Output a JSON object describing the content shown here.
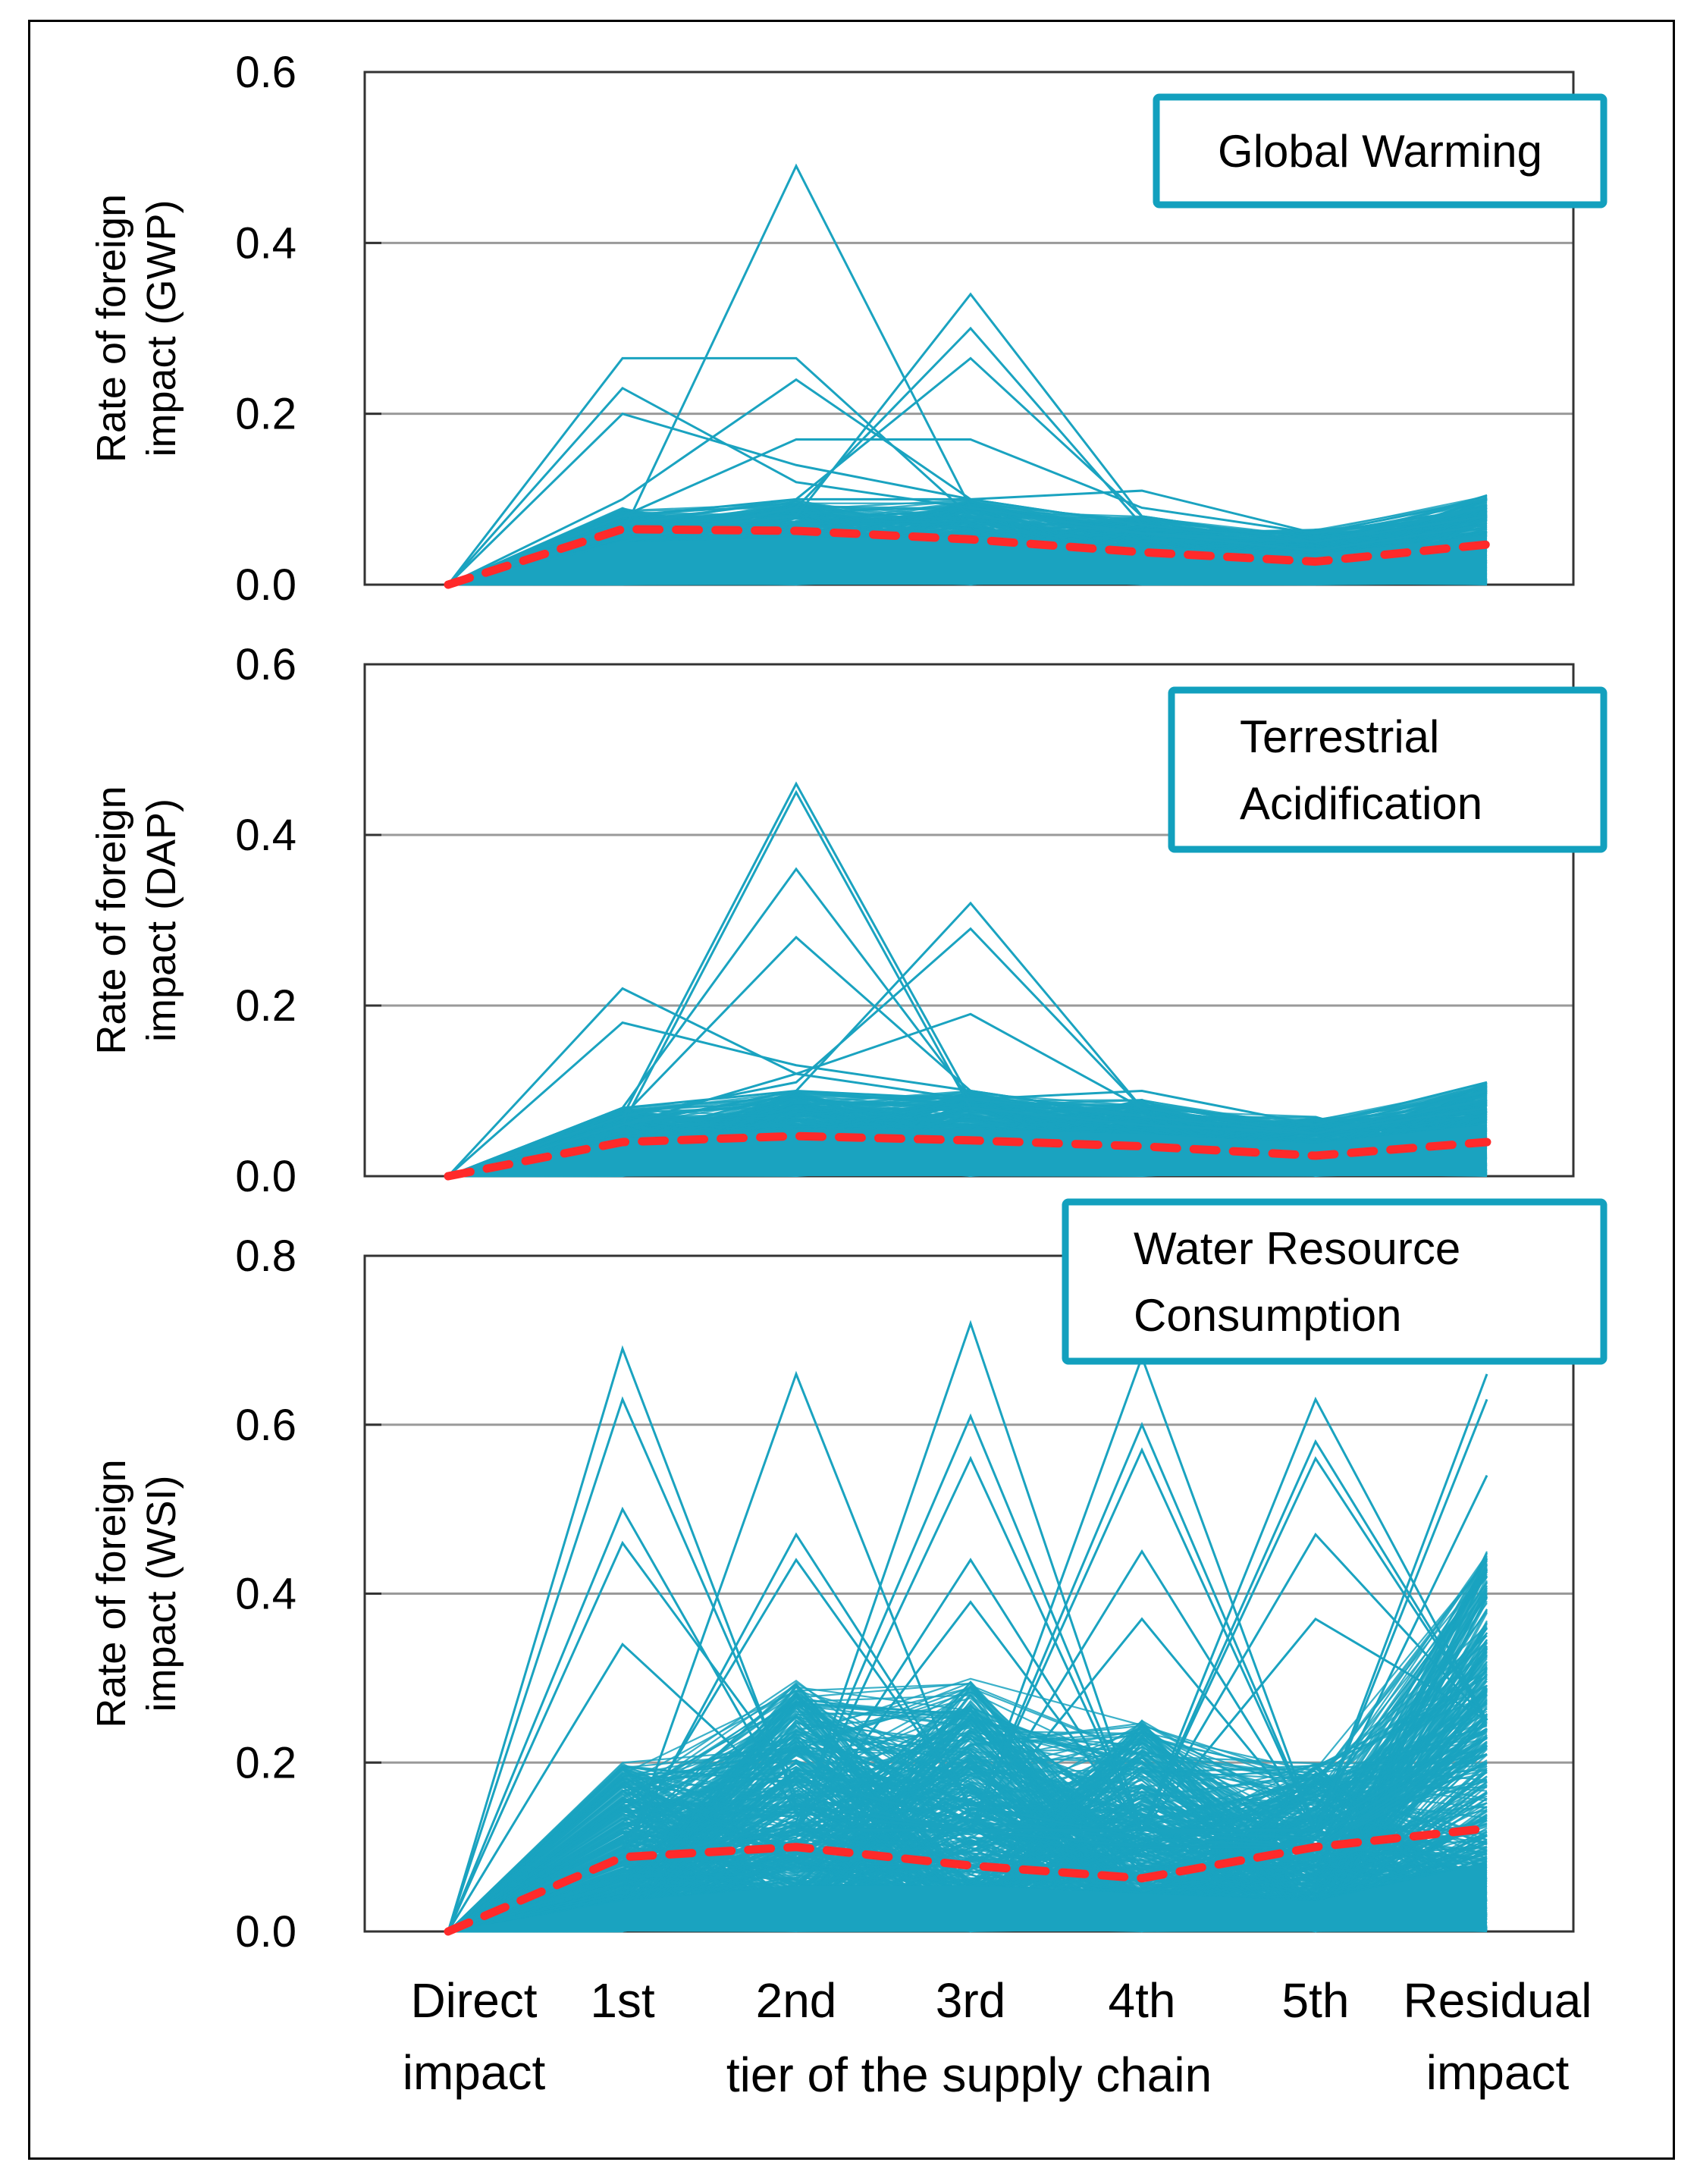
{
  "chart_data": [
    {
      "type": "line",
      "title": "Global Warming",
      "xlabel": "tier of the supply chain",
      "ylabel": "Rate of foreign impact (GWP)",
      "ylabel_lines": [
        "Rate of foreign",
        "impact (GWP)"
      ],
      "categories": [
        "Direct impact",
        "1st",
        "2nd",
        "3rd",
        "4th",
        "5th",
        "Residual impact"
      ],
      "ylim": [
        0,
        0.6
      ],
      "yticks": [
        0.0,
        0.2,
        0.4,
        0.6
      ],
      "ytick_labels": [
        "0.0",
        "0.2",
        "0.4",
        "0.6"
      ],
      "grid": true,
      "legend_box": [
        "Global Warming"
      ],
      "legend_position": "top-right",
      "series": [
        {
          "name": "mean",
          "style": "dashed",
          "color": "#ff2a2a",
          "values": [
            0,
            0.065,
            0.063,
            0.053,
            0.038,
            0.027,
            0.047
          ]
        },
        {
          "name": "sector-peak-2nd",
          "color": "#1aa3c0",
          "values": [
            0,
            0.06,
            0.49,
            0.09,
            0.06,
            0.04,
            0.07
          ]
        },
        {
          "name": "sector-peak-3rd-a",
          "color": "#1aa3c0",
          "values": [
            0,
            0.06,
            0.08,
            0.34,
            0.08,
            0.05,
            0.08
          ]
        },
        {
          "name": "sector-peak-3rd-b",
          "color": "#1aa3c0",
          "values": [
            0,
            0.05,
            0.09,
            0.3,
            0.07,
            0.05,
            0.08
          ]
        },
        {
          "name": "sector-peak-3rd-c",
          "color": "#1aa3c0",
          "values": [
            0,
            0.07,
            0.1,
            0.265,
            0.08,
            0.05,
            0.09
          ]
        },
        {
          "name": "sector-flat-high",
          "color": "#1aa3c0",
          "values": [
            0,
            0.265,
            0.265,
            0.08,
            0.06,
            0.04,
            0.07
          ]
        },
        {
          "name": "sector-peak-1st-a",
          "color": "#1aa3c0",
          "values": [
            0,
            0.23,
            0.12,
            0.09,
            0.06,
            0.05,
            0.08
          ]
        },
        {
          "name": "sector-peak-1st-b",
          "color": "#1aa3c0",
          "values": [
            0,
            0.2,
            0.14,
            0.1,
            0.07,
            0.05,
            0.08
          ]
        },
        {
          "name": "sector-peak-2nd-b",
          "color": "#1aa3c0",
          "values": [
            0,
            0.1,
            0.24,
            0.1,
            0.07,
            0.05,
            0.08
          ]
        },
        {
          "name": "sector-plateau",
          "color": "#1aa3c0",
          "values": [
            0,
            0.08,
            0.17,
            0.17,
            0.09,
            0.06,
            0.09
          ]
        },
        {
          "name": "sector-4th-high",
          "color": "#1aa3c0",
          "values": [
            0,
            0.08,
            0.1,
            0.1,
            0.11,
            0.06,
            0.1
          ]
        }
      ],
      "bulk_envelope_max": [
        0,
        0.09,
        0.1,
        0.1,
        0.08,
        0.065,
        0.105
      ]
    },
    {
      "type": "line",
      "title": "Terrestrial Acidification",
      "xlabel": "tier of the supply chain",
      "ylabel": "Rate of foreign impact (DAP)",
      "ylabel_lines": [
        "Rate of foreign",
        "impact (DAP)"
      ],
      "categories": [
        "Direct impact",
        "1st",
        "2nd",
        "3rd",
        "4th",
        "5th",
        "Residual impact"
      ],
      "ylim": [
        0,
        0.6
      ],
      "yticks": [
        0.0,
        0.2,
        0.4,
        0.6
      ],
      "ytick_labels": [
        "0.0",
        "0.2",
        "0.4",
        "0.6"
      ],
      "grid": true,
      "legend_box": [
        "Terrestrial",
        "Acidification"
      ],
      "legend_position": "top-right",
      "series": [
        {
          "name": "mean",
          "style": "dashed",
          "color": "#ff2a2a",
          "values": [
            0,
            0.04,
            0.047,
            0.042,
            0.035,
            0.024,
            0.04
          ]
        },
        {
          "name": "sector-peak-2nd-a",
          "color": "#1aa3c0",
          "values": [
            0,
            0.07,
            0.46,
            0.09,
            0.07,
            0.05,
            0.08
          ]
        },
        {
          "name": "sector-peak-2nd-b",
          "color": "#1aa3c0",
          "values": [
            0,
            0.06,
            0.45,
            0.08,
            0.06,
            0.05,
            0.08
          ]
        },
        {
          "name": "sector-peak-2nd-c",
          "color": "#1aa3c0",
          "values": [
            0,
            0.08,
            0.36,
            0.09,
            0.07,
            0.05,
            0.09
          ]
        },
        {
          "name": "sector-peak-2nd-d",
          "color": "#1aa3c0",
          "values": [
            0,
            0.07,
            0.28,
            0.1,
            0.07,
            0.05,
            0.09
          ]
        },
        {
          "name": "sector-peak-3rd-a",
          "color": "#1aa3c0",
          "values": [
            0,
            0.06,
            0.1,
            0.32,
            0.08,
            0.05,
            0.09
          ]
        },
        {
          "name": "sector-peak-3rd-b",
          "color": "#1aa3c0",
          "values": [
            0,
            0.07,
            0.11,
            0.29,
            0.08,
            0.05,
            0.09
          ]
        },
        {
          "name": "sector-peak-3rd-c",
          "color": "#1aa3c0",
          "values": [
            0,
            0.06,
            0.12,
            0.19,
            0.08,
            0.05,
            0.1
          ]
        },
        {
          "name": "sector-peak-1st-a",
          "color": "#1aa3c0",
          "values": [
            0,
            0.22,
            0.12,
            0.09,
            0.07,
            0.05,
            0.09
          ]
        },
        {
          "name": "sector-peak-1st-b",
          "color": "#1aa3c0",
          "values": [
            0,
            0.18,
            0.13,
            0.1,
            0.07,
            0.05,
            0.09
          ]
        },
        {
          "name": "sector-4th-high",
          "color": "#1aa3c0",
          "values": [
            0,
            0.08,
            0.1,
            0.09,
            0.1,
            0.06,
            0.11
          ]
        }
      ],
      "bulk_envelope_max": [
        0,
        0.08,
        0.1,
        0.1,
        0.09,
        0.07,
        0.11
      ]
    },
    {
      "type": "line",
      "title": "Water Resource Consumption",
      "xlabel": "tier of the supply chain",
      "ylabel": "Rate of foreign impact (WSI)",
      "ylabel_lines": [
        "Rate of foreign",
        "impact (WSI)"
      ],
      "categories": [
        "Direct impact",
        "1st",
        "2nd",
        "3rd",
        "4th",
        "5th",
        "Residual impact"
      ],
      "ylim": [
        0,
        0.8
      ],
      "yticks": [
        0.0,
        0.2,
        0.4,
        0.6,
        0.8
      ],
      "ytick_labels": [
        "0.0",
        "0.2",
        "0.4",
        "0.6",
        "0.8"
      ],
      "grid": true,
      "legend_box": [
        "Water Resource",
        "Consumption"
      ],
      "legend_position": "top-right",
      "series": [
        {
          "name": "mean",
          "style": "dashed",
          "color": "#ff2a2a",
          "values": [
            0,
            0.088,
            0.1,
            0.078,
            0.063,
            0.1,
            0.122
          ]
        },
        {
          "name": "sector-peak-1st-a",
          "color": "#1aa3c0",
          "values": [
            0,
            0.69,
            0.15,
            0.12,
            0.1,
            0.1,
            0.2
          ]
        },
        {
          "name": "sector-peak-1st-b",
          "color": "#1aa3c0",
          "values": [
            0,
            0.63,
            0.16,
            0.12,
            0.1,
            0.1,
            0.2
          ]
        },
        {
          "name": "sector-peak-1st-c",
          "color": "#1aa3c0",
          "values": [
            0,
            0.5,
            0.14,
            0.12,
            0.1,
            0.1,
            0.22
          ]
        },
        {
          "name": "sector-peak-1st-d",
          "color": "#1aa3c0",
          "values": [
            0,
            0.46,
            0.18,
            0.13,
            0.11,
            0.1,
            0.22
          ]
        },
        {
          "name": "sector-peak-1st-e",
          "color": "#1aa3c0",
          "values": [
            0,
            0.34,
            0.15,
            0.12,
            0.1,
            0.1,
            0.21
          ]
        },
        {
          "name": "sector-peak-2nd-a",
          "color": "#1aa3c0",
          "values": [
            0,
            0.08,
            0.66,
            0.14,
            0.1,
            0.1,
            0.22
          ]
        },
        {
          "name": "sector-peak-2nd-b",
          "color": "#1aa3c0",
          "values": [
            0,
            0.09,
            0.47,
            0.15,
            0.11,
            0.1,
            0.22
          ]
        },
        {
          "name": "sector-peak-2nd-c",
          "color": "#1aa3c0",
          "values": [
            0,
            0.1,
            0.44,
            0.15,
            0.11,
            0.1,
            0.22
          ]
        },
        {
          "name": "sector-peak-3rd-a",
          "color": "#1aa3c0",
          "values": [
            0,
            0.08,
            0.12,
            0.72,
            0.12,
            0.1,
            0.23
          ]
        },
        {
          "name": "sector-peak-3rd-b",
          "color": "#1aa3c0",
          "values": [
            0,
            0.08,
            0.13,
            0.61,
            0.12,
            0.1,
            0.23
          ]
        },
        {
          "name": "sector-peak-3rd-c",
          "color": "#1aa3c0",
          "values": [
            0,
            0.08,
            0.12,
            0.56,
            0.12,
            0.11,
            0.23
          ]
        },
        {
          "name": "sector-peak-3rd-d",
          "color": "#1aa3c0",
          "values": [
            0,
            0.08,
            0.12,
            0.44,
            0.12,
            0.11,
            0.23
          ]
        },
        {
          "name": "sector-peak-3rd-e",
          "color": "#1aa3c0",
          "values": [
            0,
            0.08,
            0.12,
            0.39,
            0.12,
            0.11,
            0.23
          ]
        },
        {
          "name": "sector-peak-4th-a",
          "color": "#1aa3c0",
          "values": [
            0,
            0.08,
            0.12,
            0.12,
            0.68,
            0.12,
            0.24
          ]
        },
        {
          "name": "sector-peak-4th-b",
          "color": "#1aa3c0",
          "values": [
            0,
            0.08,
            0.12,
            0.12,
            0.6,
            0.12,
            0.24
          ]
        },
        {
          "name": "sector-peak-4th-c",
          "color": "#1aa3c0",
          "values": [
            0,
            0.08,
            0.12,
            0.12,
            0.57,
            0.12,
            0.24
          ]
        },
        {
          "name": "sector-peak-4th-d",
          "color": "#1aa3c0",
          "values": [
            0,
            0.08,
            0.12,
            0.12,
            0.45,
            0.12,
            0.24
          ]
        },
        {
          "name": "sector-peak-4th-e",
          "color": "#1aa3c0",
          "values": [
            0,
            0.08,
            0.12,
            0.12,
            0.37,
            0.12,
            0.24
          ]
        },
        {
          "name": "sector-peak-5th-a",
          "color": "#1aa3c0",
          "values": [
            0,
            0.08,
            0.12,
            0.12,
            0.12,
            0.63,
            0.25
          ]
        },
        {
          "name": "sector-peak-5th-b",
          "color": "#1aa3c0",
          "values": [
            0,
            0.08,
            0.12,
            0.12,
            0.12,
            0.58,
            0.25
          ]
        },
        {
          "name": "sector-peak-5th-c",
          "color": "#1aa3c0",
          "values": [
            0,
            0.08,
            0.12,
            0.12,
            0.12,
            0.56,
            0.25
          ]
        },
        {
          "name": "sector-peak-5th-d",
          "color": "#1aa3c0",
          "values": [
            0,
            0.08,
            0.12,
            0.12,
            0.12,
            0.47,
            0.25
          ]
        },
        {
          "name": "sector-peak-5th-e",
          "color": "#1aa3c0",
          "values": [
            0,
            0.08,
            0.12,
            0.12,
            0.12,
            0.37,
            0.25
          ]
        },
        {
          "name": "sector-residual-a",
          "color": "#1aa3c0",
          "values": [
            0,
            0.08,
            0.12,
            0.12,
            0.12,
            0.12,
            0.66
          ]
        },
        {
          "name": "sector-residual-b",
          "color": "#1aa3c0",
          "values": [
            0,
            0.08,
            0.12,
            0.12,
            0.12,
            0.12,
            0.63
          ]
        },
        {
          "name": "sector-residual-c",
          "color": "#1aa3c0",
          "values": [
            0,
            0.08,
            0.12,
            0.12,
            0.12,
            0.12,
            0.54
          ]
        }
      ],
      "bulk_envelope_max": [
        0,
        0.2,
        0.3,
        0.3,
        0.25,
        0.2,
        0.45
      ]
    }
  ],
  "shared_xaxis": {
    "tick_labels": [
      [
        "Direct",
        "impact"
      ],
      [
        "1st"
      ],
      [
        "2nd"
      ],
      [
        "3rd"
      ],
      [
        "4th"
      ],
      [
        "5th"
      ],
      [
        "Residual",
        "impact"
      ]
    ],
    "title": "tier of the supply chain"
  },
  "colors": {
    "sector_lines": "#1aa3c0",
    "mean_line": "#ff2a2a",
    "legend_border": "#12a0be",
    "gridline": "#9a9a9a",
    "axis": "#333333"
  }
}
